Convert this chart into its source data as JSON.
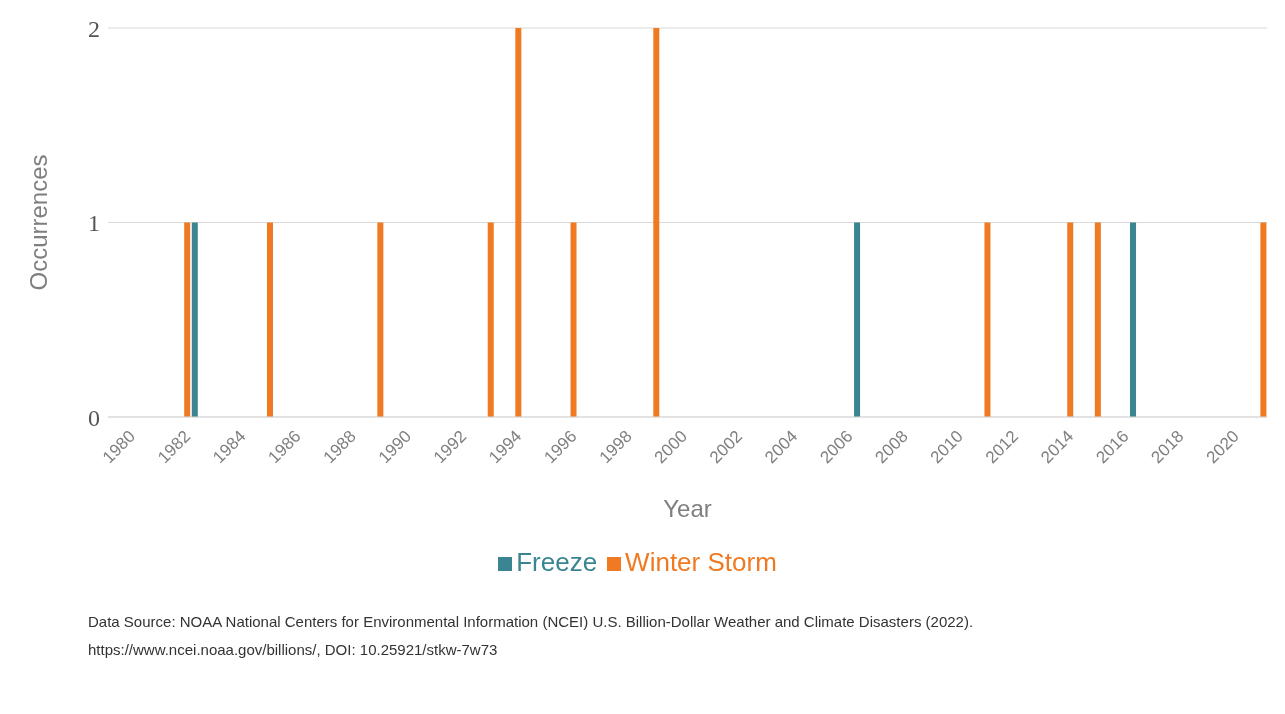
{
  "chart_data": {
    "type": "bar",
    "xlabel": "Year",
    "ylabel": "Occurrences",
    "categories": [
      "1980",
      null,
      "1982",
      null,
      "1984",
      null,
      "1986",
      null,
      "1988",
      null,
      "1990",
      null,
      "1992",
      null,
      "1994",
      null,
      "1996",
      null,
      "1998",
      null,
      "2000",
      null,
      "2002",
      null,
      "2004",
      null,
      "2006",
      null,
      "2008",
      null,
      "2010",
      null,
      "2012",
      null,
      "2014",
      null,
      "2016",
      null,
      "2018",
      null,
      "2020",
      null
    ],
    "series": [
      {
        "name": "Freeze",
        "color": "#3a8591",
        "values": [
          0,
          0,
          0,
          1,
          0,
          0,
          0,
          0,
          0,
          0,
          0,
          0,
          0,
          0,
          0,
          0,
          0,
          0,
          0,
          0,
          0,
          0,
          0,
          0,
          0,
          0,
          0,
          1,
          0,
          0,
          0,
          0,
          0,
          0,
          0,
          0,
          0,
          1,
          0,
          0,
          0,
          0
        ]
      },
      {
        "name": "Winter Storm",
        "color": "#ef7a22",
        "values": [
          0,
          0,
          1,
          0,
          0,
          1,
          0,
          0,
          0,
          1,
          0,
          0,
          0,
          1,
          2,
          0,
          1,
          0,
          0,
          2,
          0,
          0,
          0,
          0,
          0,
          0,
          0,
          0,
          0,
          0,
          0,
          1,
          0,
          0,
          1,
          1,
          0,
          0,
          0,
          0,
          0,
          1
        ]
      }
    ],
    "ylim": [
      0,
      2
    ],
    "yticks": [
      0,
      1,
      2
    ],
    "grid": "y",
    "legend": "bottom",
    "annotations": [
      "Data Source: NOAA National Centers for Environmental Information (NCEI) U.S. Billion-Dollar Weather and Climate Disasters (2022). https://www.ncei.noaa.gov/billions/, DOI: 10.25921/stkw-7w73"
    ]
  }
}
